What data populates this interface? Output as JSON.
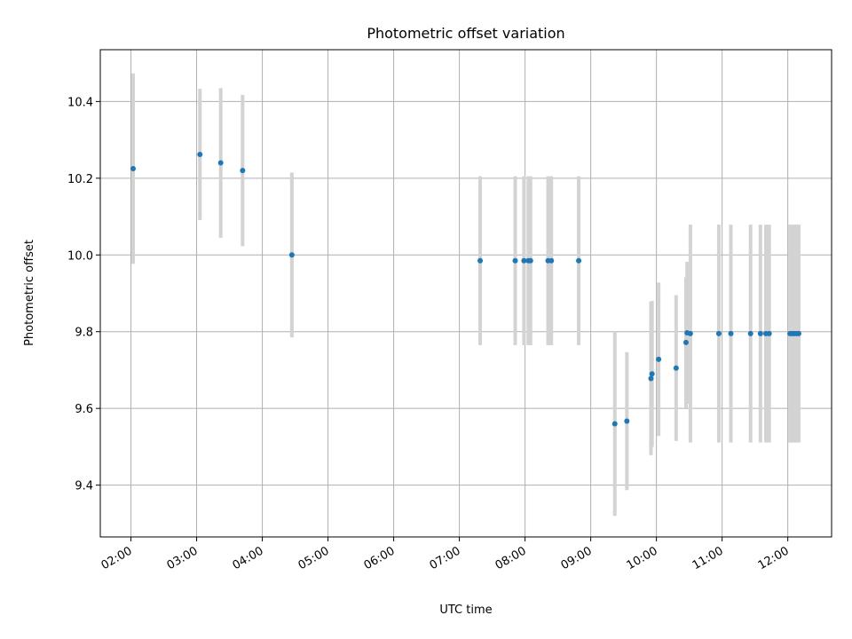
{
  "chart_data": {
    "type": "scatter",
    "title": "Photometric offset variation",
    "xlabel": "UTC time",
    "ylabel": "Photometric offset",
    "xlim": [
      "01:32",
      "12:40"
    ],
    "ylim": [
      9.265,
      10.535
    ],
    "grid": true,
    "x_ticks": [
      "02:00",
      "03:00",
      "04:00",
      "05:00",
      "06:00",
      "07:00",
      "08:00",
      "09:00",
      "10:00",
      "11:00",
      "12:00"
    ],
    "y_ticks": [
      9.4,
      9.6,
      9.8,
      10.0,
      10.2,
      10.4
    ],
    "y_tick_labels": [
      "9.4",
      "9.6",
      "9.8",
      "10.0",
      "10.2",
      "10.4"
    ],
    "series": [
      {
        "points": [
          {
            "x": "02:02",
            "y": 10.225,
            "err": 0.248
          },
          {
            "x": "03:03",
            "y": 10.262,
            "err": 0.171
          },
          {
            "x": "03:22",
            "y": 10.24,
            "err": 0.195
          },
          {
            "x": "03:42",
            "y": 10.22,
            "err": 0.197
          },
          {
            "x": "04:27",
            "y": 10.0,
            "err": 0.215
          },
          {
            "x": "07:19",
            "y": 9.985,
            "err": 0.22
          },
          {
            "x": "07:51",
            "y": 9.985,
            "err": 0.22
          },
          {
            "x": "07:59",
            "y": 9.985,
            "err": 0.22
          },
          {
            "x": "08:03",
            "y": 9.985,
            "err": 0.22
          },
          {
            "x": "08:05",
            "y": 9.985,
            "err": 0.22
          },
          {
            "x": "08:21",
            "y": 9.985,
            "err": 0.22
          },
          {
            "x": "08:24",
            "y": 9.985,
            "err": 0.22
          },
          {
            "x": "08:49",
            "y": 9.985,
            "err": 0.22
          },
          {
            "x": "09:22",
            "y": 9.56,
            "err": 0.24
          },
          {
            "x": "09:33",
            "y": 9.567,
            "err": 0.18
          },
          {
            "x": "09:55",
            "y": 9.678,
            "err": 0.2
          },
          {
            "x": "09:56",
            "y": 9.69,
            "err": 0.19
          },
          {
            "x": "10:02",
            "y": 9.728,
            "err": 0.2
          },
          {
            "x": "10:18",
            "y": 9.705,
            "err": 0.19
          },
          {
            "x": "10:27",
            "y": 9.772,
            "err": 0.17
          },
          {
            "x": "10:28",
            "y": 9.797,
            "err": 0.185
          },
          {
            "x": "10:31",
            "y": 9.795,
            "err": 0.284
          },
          {
            "x": "10:57",
            "y": 9.795,
            "err": 0.284
          },
          {
            "x": "11:08",
            "y": 9.795,
            "err": 0.284
          },
          {
            "x": "11:26",
            "y": 9.795,
            "err": 0.284
          },
          {
            "x": "11:35",
            "y": 9.795,
            "err": 0.284
          },
          {
            "x": "11:40",
            "y": 9.795,
            "err": 0.284
          },
          {
            "x": "11:43",
            "y": 9.795,
            "err": 0.284
          },
          {
            "x": "12:02",
            "y": 9.795,
            "err": 0.284
          },
          {
            "x": "12:04",
            "y": 9.795,
            "err": 0.284
          },
          {
            "x": "12:06",
            "y": 9.795,
            "err": 0.284
          },
          {
            "x": "12:08",
            "y": 9.795,
            "err": 0.284
          },
          {
            "x": "12:10",
            "y": 9.795,
            "err": 0.284
          }
        ]
      }
    ],
    "colors": {
      "points": "#1f77b4",
      "errorbars": "#d3d3d3",
      "grid": "#b0b0b0"
    }
  }
}
